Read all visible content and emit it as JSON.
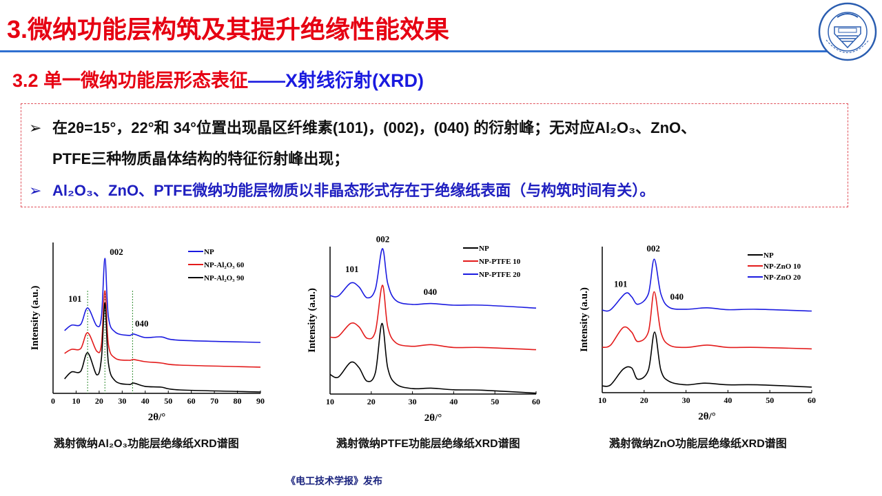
{
  "header": {
    "title": "3.微纳功能层构筑及其提升绝缘性能效果",
    "subtitle_red": "3.2 单一微纳功能层形态表征",
    "subtitle_blue": "——X射线衍射(XRD)",
    "logo_text": "重庆大学 1929 CHONGQING UNIVERSITY"
  },
  "bullets": {
    "marker": "➢",
    "line1": "在2θ=15°，22°和 34°位置出现晶区纤维素(101)，(002)，(040) 的衍射峰；无对应Al₂O₃、ZnO、",
    "line1_cont": "PTFE三种物质晶体结构的特征衍射峰出现；",
    "line2": "Al₂O₃、ZnO、PTFE微纳功能层物质以非晶态形式存在于绝缘纸表面（与构筑时间有关）。"
  },
  "captions": [
    "溅射微纳Al₂O₃功能层绝缘纸XRD谱图",
    "溅射微纳PTFE功能层绝缘纸XRD谱图",
    "溅射微纳ZnO功能层绝缘纸XRD谱图"
  ],
  "footer": "《电工技术学报》发布",
  "colors": {
    "title_red": "#e60012",
    "accent_blue": "#1a1adf",
    "rule_blue": "#2f6fd0",
    "black": "#000000",
    "red": "#e31a1a",
    "blue": "#1a1ae0",
    "guide_green": "#2e8b2e"
  },
  "chart_data": [
    {
      "type": "line",
      "xlabel": "2θ/°",
      "ylabel": "Intensity (a.u.)",
      "xlim": [
        0,
        90
      ],
      "ylim": [
        0,
        100
      ],
      "xticks": [
        "0",
        "10",
        "20",
        "30",
        "40",
        "50",
        "60",
        "70",
        "80",
        "90"
      ],
      "grid": false,
      "legend": "top-right",
      "guides": [
        15,
        22.5,
        34.5
      ],
      "annotations": [
        {
          "text": "101",
          "x": 9.5,
          "y": 60.7
        },
        {
          "text": "002",
          "x": 27.5,
          "y": 91.8
        },
        {
          "text": "040",
          "x": 38.5,
          "y": 44.3
        }
      ],
      "series": [
        {
          "name": "NP",
          "color": "#1a1ae0",
          "x": [
            5,
            8,
            12,
            15,
            19,
            21,
            22.5,
            24,
            27,
            33,
            35,
            40,
            47,
            55,
            90
          ],
          "y": [
            41.6,
            45.2,
            45.7,
            56.6,
            44.7,
            50.7,
            89.5,
            50.7,
            40.6,
            38.4,
            39.3,
            37,
            37.4,
            35.2,
            33.8
          ]
        },
        {
          "name": "NP-Al₂O₃ 60",
          "color": "#e31a1a",
          "x": [
            5,
            8,
            12,
            15,
            19,
            21,
            22.5,
            24,
            27,
            33,
            35,
            40,
            47,
            55,
            90
          ],
          "y": [
            26.5,
            29.2,
            29.7,
            40.2,
            27.9,
            32.4,
            68,
            32.4,
            23.3,
            21.9,
            22.4,
            21,
            20.1,
            18.7,
            17.4
          ]
        },
        {
          "name": "NP-Al₂O₃ 90",
          "color": "#000000",
          "x": [
            5,
            8,
            12,
            15,
            19,
            21,
            22.5,
            24,
            27,
            33,
            35,
            40,
            47,
            55,
            90
          ],
          "y": [
            9.6,
            14.2,
            14.6,
            26.9,
            12.3,
            23.3,
            59.8,
            20.1,
            8.2,
            5.9,
            6.8,
            4.6,
            4.1,
            2.3,
            0.9
          ]
        }
      ]
    },
    {
      "type": "line",
      "xlabel": "2θ/°",
      "ylabel": "Intensity (a.u.)",
      "xlim": [
        10,
        60
      ],
      "ylim": [
        0,
        100
      ],
      "xticks": [
        "10",
        "20",
        "30",
        "40",
        "50",
        "60"
      ],
      "grid": false,
      "legend": "top-right",
      "annotations": [
        {
          "text": "101",
          "x": 15.3,
          "y": 82.8
        },
        {
          "text": "002",
          "x": 22.8,
          "y": 103
        },
        {
          "text": "040",
          "x": 34.3,
          "y": 67.4
        }
      ],
      "series": [
        {
          "name": "NP",
          "color": "#000000",
          "x": [
            10,
            12,
            15,
            17,
            19,
            21,
            22.6,
            24,
            26,
            30,
            34.5,
            40,
            47,
            60
          ],
          "y": [
            13.3,
            11.5,
            21.5,
            18,
            8.7,
            14.6,
            47.9,
            17.7,
            6.8,
            3.7,
            4,
            2.9,
            2.6,
            0.6
          ]
        },
        {
          "name": "NP-PTFE 10",
          "color": "#e31a1a",
          "x": [
            10,
            12,
            15,
            17,
            19,
            21,
            22.7,
            24,
            26,
            30,
            34.5,
            40,
            47,
            60
          ],
          "y": [
            38.6,
            39.1,
            47.9,
            45.6,
            37.8,
            42.5,
            73.8,
            45.6,
            34.7,
            32.4,
            33.5,
            31.6,
            31.6,
            30.1
          ]
        },
        {
          "name": "NP-PTFE 20",
          "color": "#1a1ae0",
          "x": [
            10,
            12,
            15,
            17,
            19,
            21,
            22.7,
            24,
            26,
            30,
            34.5,
            40,
            47,
            60
          ],
          "y": [
            66.8,
            66.5,
            75.3,
            72.7,
            65.3,
            71.2,
            98.6,
            75,
            63.4,
            60.8,
            61.4,
            60.3,
            60.3,
            58.3
          ]
        }
      ]
    },
    {
      "type": "line",
      "xlabel": "2θ/°",
      "ylabel": "Intensity (a.u.)",
      "xlim": [
        10,
        60
      ],
      "ylim": [
        0,
        100
      ],
      "xticks": [
        "10",
        "20",
        "30",
        "40",
        "50",
        "60"
      ],
      "grid": false,
      "legend": "top-right",
      "annotations": [
        {
          "text": "101",
          "x": 14.4,
          "y": 72.4
        },
        {
          "text": "002",
          "x": 22.2,
          "y": 96.8
        },
        {
          "text": "040",
          "x": 27.8,
          "y": 63.6
        }
      ],
      "series": [
        {
          "name": "NP",
          "color": "#000000",
          "x": [
            10,
            12,
            15,
            17,
            18.5,
            21,
            22.5,
            24,
            26,
            30,
            34.5,
            40,
            47,
            60
          ],
          "y": [
            4.6,
            5.4,
            16.1,
            17,
            9.2,
            15.4,
            41.5,
            15.4,
            7.7,
            5.4,
            6.5,
            5.4,
            5.4,
            3.8
          ]
        },
        {
          "name": "NP-ZnO 10",
          "color": "#e31a1a",
          "x": [
            10,
            12,
            15,
            17,
            18.5,
            21,
            22.4,
            24,
            26,
            30,
            35,
            40,
            47,
            60
          ],
          "y": [
            31,
            32.6,
            44.6,
            41.5,
            35,
            41.5,
            69.1,
            41.5,
            32.6,
            31,
            32.6,
            31,
            31,
            30
          ]
        },
        {
          "name": "NP-ZnO 20",
          "color": "#1a1ae0",
          "x": [
            10,
            12,
            15.5,
            17,
            18.5,
            21,
            22.4,
            24,
            26,
            30,
            35,
            40,
            47,
            60
          ],
          "y": [
            56.5,
            56.8,
            67.9,
            65.7,
            60.5,
            67.6,
            91.4,
            67.6,
            58.4,
            57.1,
            58.1,
            56.8,
            57.1,
            55.9
          ]
        }
      ]
    }
  ]
}
